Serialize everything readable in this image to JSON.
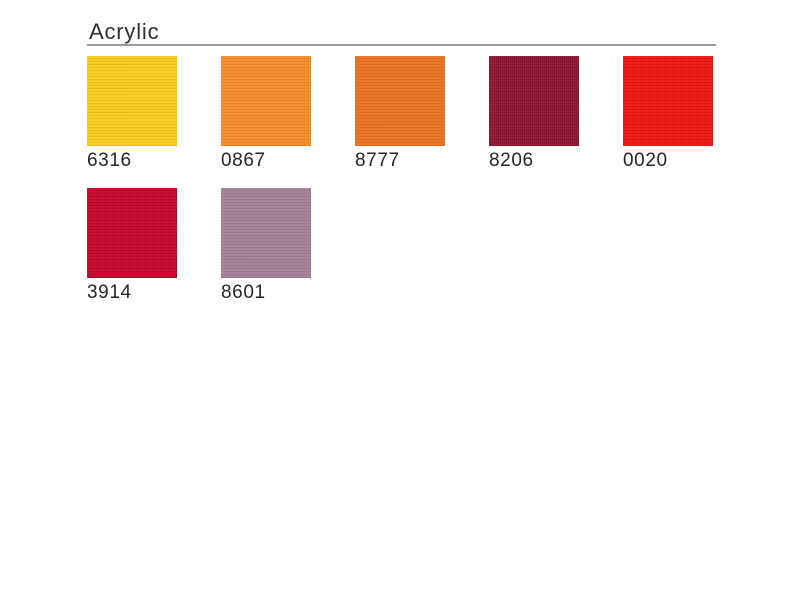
{
  "page": {
    "title": "Acrylic",
    "background_color": "#ffffff",
    "rule_color": "#9a9a9a",
    "title_color": "#2f2f2f",
    "label_color": "#262626"
  },
  "swatches": [
    {
      "code": "6316",
      "color": "#facd1c"
    },
    {
      "code": "0867",
      "color": "#f68c28"
    },
    {
      "code": "8777",
      "color": "#ec7122"
    },
    {
      "code": "8206",
      "color": "#8b1130"
    },
    {
      "code": "0020",
      "color": "#ee1310"
    },
    {
      "code": "3914",
      "color": "#c30329"
    },
    {
      "code": "8601",
      "color": "#a27e95"
    }
  ]
}
